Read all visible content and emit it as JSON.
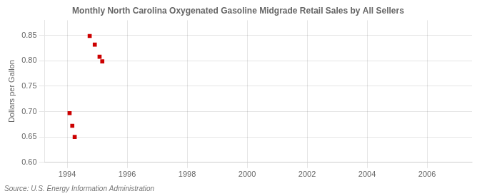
{
  "chart_data": {
    "type": "scatter",
    "title": "Monthly North Carolina Oxygenated Gasoline Midgrade Retail Sales by All Sellers",
    "ylabel": "Dollars per Gallon",
    "source": "Source: U.S. Energy Information Administration",
    "x": [
      1994.08,
      1994.17,
      1994.25,
      1994.75,
      1994.92,
      1995.08,
      1995.17
    ],
    "values": [
      0.697,
      0.672,
      0.65,
      0.849,
      0.832,
      0.808,
      0.799
    ],
    "color": "#cc0000",
    "marker": "square",
    "xlim": [
      1993.25,
      2007.5
    ],
    "ylim": [
      0.6,
      0.88
    ],
    "xticks": [
      1994,
      1996,
      1998,
      2000,
      2002,
      2004,
      2006
    ],
    "yticks": [
      {
        "value": 0.6,
        "label": "0.60"
      },
      0.65,
      {
        "value": 0.7,
        "label": "0.70"
      },
      0.75,
      {
        "value": 0.8,
        "label": "0.80"
      },
      0.85
    ],
    "grid": true
  }
}
